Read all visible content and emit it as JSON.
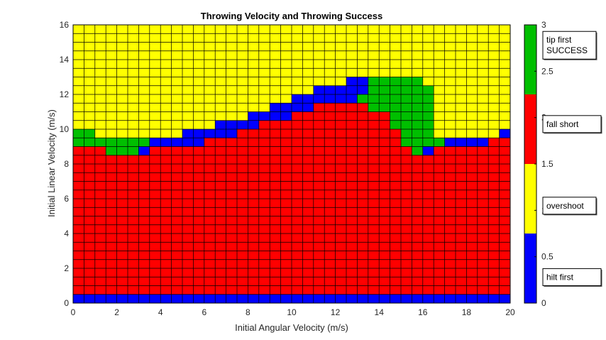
{
  "chart_data": {
    "type": "heatmap",
    "title": "Throwing Velocity and Throwing Success",
    "xlabel": "Initial Angular Velocity (m/s)",
    "ylabel": "Initial Linear Velocity (m/s)",
    "xlim": [
      0,
      20
    ],
    "ylim": [
      0,
      16
    ],
    "x_step": 0.5,
    "y_step": 0.5,
    "x_ticks": [
      "0",
      "2",
      "4",
      "6",
      "8",
      "10",
      "12",
      "14",
      "16",
      "18",
      "20"
    ],
    "y_ticks": [
      "0",
      "2",
      "4",
      "6",
      "8",
      "10",
      "12",
      "14",
      "16"
    ],
    "grid": true,
    "colors": {
      "0": "#0000ff",
      "1": "#ffff00",
      "2": "#ff0000",
      "3": "#00bf00",
      "gridline": "#000000"
    },
    "colorbar": {
      "range": [
        0,
        3
      ],
      "tick_values": [
        0,
        0.5,
        1,
        1.5,
        2,
        2.5,
        3
      ],
      "tick_labels": [
        "0",
        "0.5",
        "1",
        "1.5",
        "2",
        "2.5",
        "3"
      ],
      "annotations": [
        {
          "text": "tip first\nSUCCESS",
          "value": 2.78
        },
        {
          "text": "fall short",
          "value": 1.93
        },
        {
          "text": "overshoot",
          "value": 1.05
        },
        {
          "text": "hilt first",
          "value": 0.28
        }
      ]
    },
    "legend_codes": {
      "hilt first": 0,
      "overshoot": 1,
      "fall short": 2,
      "tip first SUCCESS": 3
    },
    "columns": [
      {
        "x0": 0.0,
        "x1": 1.0,
        "runs": [
          [
            0,
            0.5,
            0
          ],
          [
            0.5,
            9,
            2
          ],
          [
            9,
            10,
            3
          ],
          [
            10,
            16,
            1
          ]
        ]
      },
      {
        "x0": 1.0,
        "x1": 1.5,
        "runs": [
          [
            0,
            0.5,
            0
          ],
          [
            0.5,
            9,
            2
          ],
          [
            9,
            9.5,
            3
          ],
          [
            9.5,
            16,
            1
          ]
        ]
      },
      {
        "x0": 1.5,
        "x1": 3.0,
        "runs": [
          [
            0,
            0.5,
            0
          ],
          [
            0.5,
            8.5,
            2
          ],
          [
            8.5,
            9.5,
            3
          ],
          [
            9.5,
            16,
            1
          ]
        ]
      },
      {
        "x0": 3.0,
        "x1": 3.5,
        "runs": [
          [
            0,
            0.5,
            0
          ],
          [
            0.5,
            8.5,
            2
          ],
          [
            8.5,
            9,
            0
          ],
          [
            9,
            9.5,
            3
          ],
          [
            9.5,
            16,
            1
          ]
        ]
      },
      {
        "x0": 3.5,
        "x1": 4.5,
        "runs": [
          [
            0,
            0.5,
            0
          ],
          [
            0.5,
            9,
            2
          ],
          [
            9,
            9.5,
            0
          ],
          [
            9.5,
            16,
            1
          ]
        ]
      },
      {
        "x0": 4.5,
        "x1": 5.0,
        "runs": [
          [
            0,
            0.5,
            0
          ],
          [
            0.5,
            9,
            2
          ],
          [
            9,
            9.5,
            0
          ],
          [
            9.5,
            16,
            1
          ]
        ]
      },
      {
        "x0": 5.0,
        "x1": 6.0,
        "runs": [
          [
            0,
            0.5,
            0
          ],
          [
            0.5,
            9,
            2
          ],
          [
            9,
            10,
            0
          ],
          [
            10,
            16,
            1
          ]
        ]
      },
      {
        "x0": 6.0,
        "x1": 6.5,
        "runs": [
          [
            0,
            0.5,
            0
          ],
          [
            0.5,
            9.5,
            2
          ],
          [
            9.5,
            10,
            0
          ],
          [
            10,
            16,
            1
          ]
        ]
      },
      {
        "x0": 6.5,
        "x1": 7.5,
        "runs": [
          [
            0,
            0.5,
            0
          ],
          [
            0.5,
            9.5,
            2
          ],
          [
            9.5,
            10.5,
            0
          ],
          [
            10.5,
            16,
            1
          ]
        ]
      },
      {
        "x0": 7.5,
        "x1": 8.0,
        "runs": [
          [
            0,
            0.5,
            0
          ],
          [
            0.5,
            10,
            2
          ],
          [
            10,
            10.5,
            0
          ],
          [
            10.5,
            16,
            1
          ]
        ]
      },
      {
        "x0": 8.0,
        "x1": 8.5,
        "runs": [
          [
            0,
            0.5,
            0
          ],
          [
            0.5,
            10,
            2
          ],
          [
            10,
            11,
            0
          ],
          [
            11,
            16,
            1
          ]
        ]
      },
      {
        "x0": 8.5,
        "x1": 9.0,
        "runs": [
          [
            0,
            0.5,
            0
          ],
          [
            0.5,
            10.5,
            2
          ],
          [
            10.5,
            11,
            0
          ],
          [
            11,
            16,
            1
          ]
        ]
      },
      {
        "x0": 9.0,
        "x1": 10.0,
        "runs": [
          [
            0,
            0.5,
            0
          ],
          [
            0.5,
            10.5,
            2
          ],
          [
            10.5,
            11.5,
            0
          ],
          [
            11.5,
            16,
            1
          ]
        ]
      },
      {
        "x0": 10.0,
        "x1": 11.0,
        "runs": [
          [
            0,
            0.5,
            0
          ],
          [
            0.5,
            11,
            2
          ],
          [
            11,
            12,
            0
          ],
          [
            12,
            16,
            1
          ]
        ]
      },
      {
        "x0": 11.0,
        "x1": 12.5,
        "runs": [
          [
            0,
            0.5,
            0
          ],
          [
            0.5,
            11.5,
            2
          ],
          [
            11.5,
            12.5,
            0
          ],
          [
            12.5,
            16,
            1
          ]
        ]
      },
      {
        "x0": 12.5,
        "x1": 13.0,
        "runs": [
          [
            0,
            0.5,
            0
          ],
          [
            0.5,
            11.5,
            2
          ],
          [
            11.5,
            13,
            0
          ],
          [
            13,
            16,
            1
          ]
        ]
      },
      {
        "x0": 13.0,
        "x1": 13.5,
        "runs": [
          [
            0,
            0.5,
            0
          ],
          [
            0.5,
            11.5,
            2
          ],
          [
            11.5,
            12,
            3
          ],
          [
            12,
            13,
            0
          ],
          [
            13,
            16,
            1
          ]
        ]
      },
      {
        "x0": 13.5,
        "x1": 14.0,
        "runs": [
          [
            0,
            0.5,
            0
          ],
          [
            0.5,
            11,
            2
          ],
          [
            11,
            13,
            3
          ],
          [
            13,
            16,
            1
          ]
        ]
      },
      {
        "x0": 14.0,
        "x1": 14.5,
        "runs": [
          [
            0,
            0.5,
            0
          ],
          [
            0.5,
            11,
            2
          ],
          [
            11,
            13,
            3
          ],
          [
            13,
            16,
            1
          ]
        ]
      },
      {
        "x0": 14.5,
        "x1": 15.0,
        "runs": [
          [
            0,
            0.5,
            0
          ],
          [
            0.5,
            10,
            2
          ],
          [
            10,
            13,
            3
          ],
          [
            13,
            16,
            1
          ]
        ]
      },
      {
        "x0": 15.0,
        "x1": 15.5,
        "runs": [
          [
            0,
            0.5,
            0
          ],
          [
            0.5,
            9,
            2
          ],
          [
            9,
            13,
            3
          ],
          [
            13,
            16,
            1
          ]
        ]
      },
      {
        "x0": 15.5,
        "x1": 16.0,
        "runs": [
          [
            0,
            0.5,
            0
          ],
          [
            0.5,
            8.5,
            2
          ],
          [
            8.5,
            13,
            3
          ],
          [
            13,
            16,
            1
          ]
        ]
      },
      {
        "x0": 16.0,
        "x1": 16.5,
        "runs": [
          [
            0,
            0.5,
            0
          ],
          [
            0.5,
            8.5,
            2
          ],
          [
            8.5,
            9,
            0
          ],
          [
            9,
            12.5,
            3
          ],
          [
            12.5,
            16,
            1
          ]
        ]
      },
      {
        "x0": 16.5,
        "x1": 17.0,
        "runs": [
          [
            0,
            0.5,
            0
          ],
          [
            0.5,
            9,
            2
          ],
          [
            9,
            9.5,
            3
          ],
          [
            9.5,
            16,
            1
          ]
        ]
      },
      {
        "x0": 17.0,
        "x1": 19.0,
        "runs": [
          [
            0,
            0.5,
            0
          ],
          [
            0.5,
            9,
            2
          ],
          [
            9,
            9.5,
            0
          ],
          [
            9.5,
            16,
            1
          ]
        ]
      },
      {
        "x0": 19.0,
        "x1": 19.5,
        "runs": [
          [
            0,
            0.5,
            0
          ],
          [
            0.5,
            9.5,
            2
          ],
          [
            9.5,
            16,
            1
          ]
        ]
      },
      {
        "x0": 19.5,
        "x1": 20.0,
        "runs": [
          [
            0,
            0.5,
            0
          ],
          [
            0.5,
            9.5,
            2
          ],
          [
            9.5,
            10,
            0
          ],
          [
            10,
            16,
            1
          ]
        ]
      }
    ]
  }
}
